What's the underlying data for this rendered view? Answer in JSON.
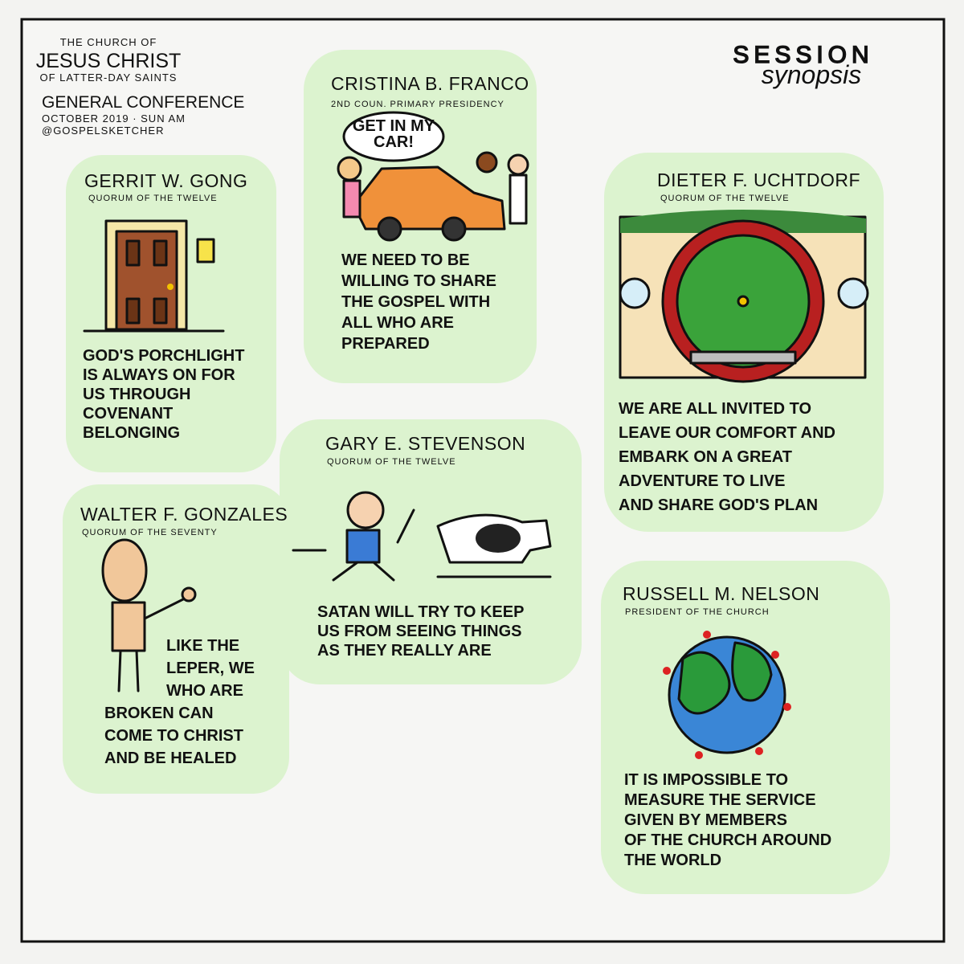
{
  "header": {
    "line1": "THE CHURCH OF",
    "line2": "JESUS CHRIST",
    "line3": "OF LATTER-DAY SAINTS",
    "event": "GENERAL CONFERENCE",
    "session": "OCTOBER 2019 · SUN AM",
    "handle": "@GOSPELSKETCHER"
  },
  "badge": {
    "title": "SESSION",
    "subtitle": "synopsis"
  },
  "panels": [
    {
      "speaker": "GERRIT W. GONG",
      "role": "QUORUM OF THE TWELVE",
      "message": [
        "GOD'S PORCHLIGHT",
        "IS ALWAYS ON FOR",
        "US THROUGH",
        "COVENANT",
        "BELONGING"
      ]
    },
    {
      "speaker": "CRISTINA B. FRANCO",
      "role": "2ND COUN. PRIMARY PRESIDENCY",
      "bubble": [
        "GET IN MY",
        "CAR!"
      ],
      "message": [
        "WE NEED TO BE",
        "WILLING TO SHARE",
        "THE GOSPEL WITH",
        "ALL WHO ARE",
        "PREPARED"
      ]
    },
    {
      "speaker": "DIETER F. UCHTDORF",
      "role": "QUORUM OF THE TWELVE",
      "message": [
        "WE ARE ALL INVITED TO",
        "LEAVE OUR COMFORT AND",
        "EMBARK ON A GREAT",
        "ADVENTURE TO LIVE",
        "AND SHARE GOD'S PLAN"
      ]
    },
    {
      "speaker": "WALTER F. GONZALES",
      "role": "QUORUM OF THE SEVENTY",
      "message": [
        "LIKE THE",
        "LEPER, WE",
        "WHO ARE",
        "BROKEN CAN",
        "COME TO CHRIST",
        "AND BE HEALED"
      ]
    },
    {
      "speaker": "GARY E. STEVENSON",
      "role": "QUORUM OF THE TWELVE",
      "message": [
        "SATAN WILL TRY TO KEEP",
        "US FROM SEEING THINGS",
        "AS THEY REALLY ARE"
      ]
    },
    {
      "speaker": "RUSSELL M. NELSON",
      "role": "PRESIDENT OF THE CHURCH",
      "message": [
        "IT IS IMPOSSIBLE TO",
        "MEASURE THE SERVICE",
        "GIVEN BY MEMBERS",
        "OF THE CHURCH AROUND",
        "THE WORLD"
      ]
    }
  ]
}
